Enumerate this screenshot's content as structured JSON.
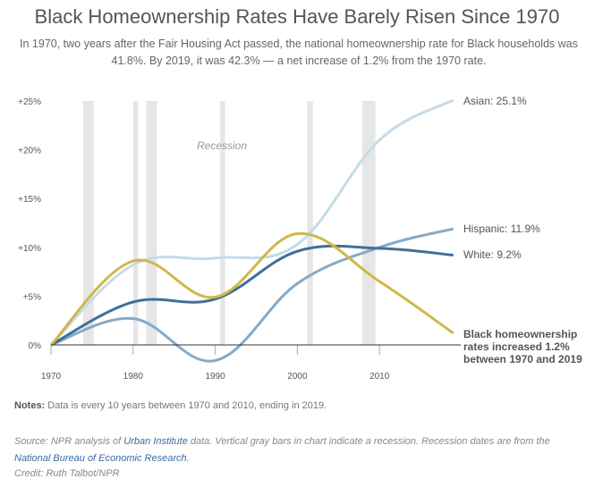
{
  "title": "Black Homeownership Rates Have Barely Risen Since 1970",
  "subtitle": "In 1970, two years after the Fair Housing Act passed, the national homeownership rate for Black households was 41.8%. By 2019, it was 42.3% — a net increase of 1.2% from the 1970 rate.",
  "notes": {
    "label": "Notes:",
    "text": " Data is every 10 years between 1970 and 2010, ending in 2019."
  },
  "source": {
    "pre": "Source: NPR analysis of ",
    "link1": "Urban Institute",
    "mid": " data. Vertical gray bars in chart indicate a recession. Recession dates are from the ",
    "link2": "National Bureau of Economic Research",
    "post": "."
  },
  "credit": "Credit: Ruth Talbot/NPR",
  "chart_data": {
    "type": "line",
    "x": [
      1970,
      1980,
      1990,
      2000,
      2010,
      2019
    ],
    "xlim": [
      1970,
      2019
    ],
    "ylim": [
      -2,
      25
    ],
    "xticks": [
      "1970",
      "1980",
      "1990",
      "2000",
      "2010"
    ],
    "yticks": [
      "+25%",
      "+20%",
      "+15%",
      "+10%",
      "+5%",
      "0%"
    ],
    "recession_label": "Recession",
    "recessions": [
      [
        1973.9,
        1975.2
      ],
      [
        1980.0,
        1980.6
      ],
      [
        1981.6,
        1982.9
      ],
      [
        1990.6,
        1991.2
      ],
      [
        2001.2,
        2001.9
      ],
      [
        2007.9,
        2009.5
      ]
    ],
    "recession_color": "#e6e6e6",
    "series": [
      {
        "name": "Asian: 25.1%",
        "color": "#c4dbe9",
        "values": [
          0,
          8.2,
          8.9,
          10.3,
          21,
          25.1
        ]
      },
      {
        "name": "Hispanic: 11.9%",
        "color": "#86aac6",
        "values": [
          0,
          2.7,
          -1.6,
          6.3,
          10,
          11.9
        ]
      },
      {
        "name": "White: 9.2%",
        "color": "#3f6f99",
        "values": [
          0,
          4.4,
          4.7,
          9.6,
          9.9,
          9.2
        ]
      },
      {
        "name": "Black homeownership rates increased 1.2% between 1970 and 2019",
        "color": "#cfb84a",
        "values": [
          0,
          8.6,
          4.9,
          11.4,
          6.5,
          1.2
        ]
      }
    ]
  }
}
